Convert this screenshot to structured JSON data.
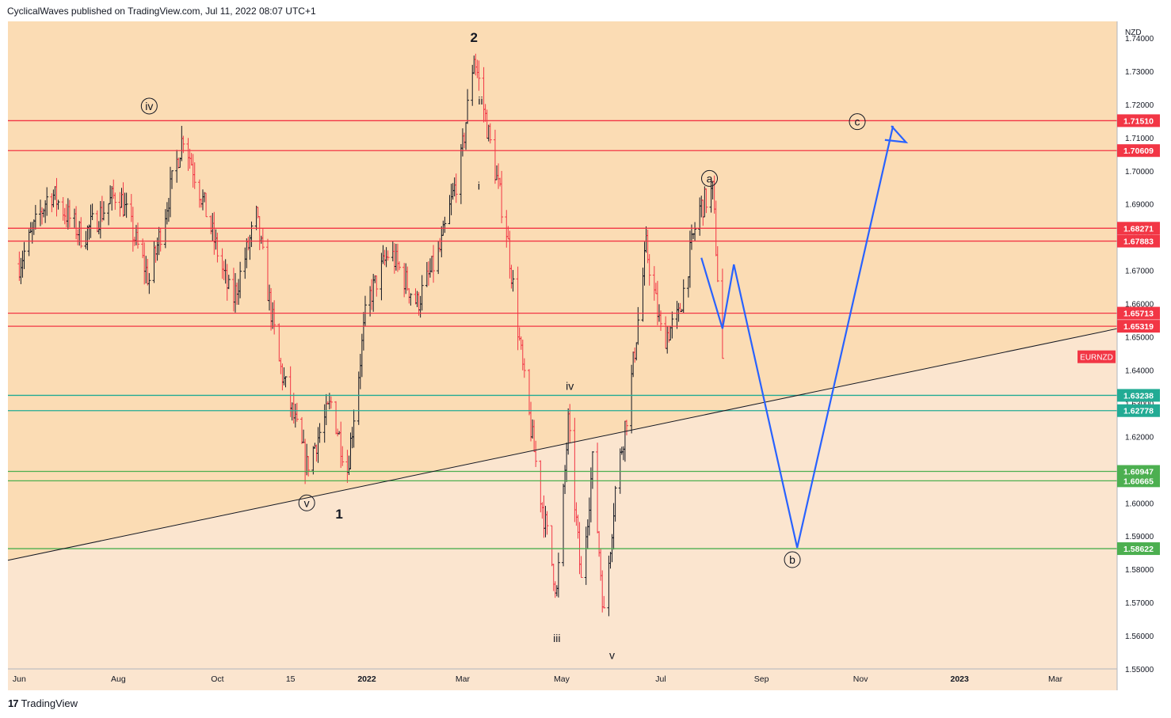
{
  "header": {
    "published": "CyclicalWaves published on TradingView.com, Jul 11, 2022 08:07 UTC+1"
  },
  "footer": {
    "logo_glyph": "17",
    "brand": "TradingView"
  },
  "colors": {
    "upper_bg": "#fbdcb4",
    "lower_bg": "#fbe5cf",
    "resistance": "#f23645",
    "support": "#22ab94",
    "support_light": "#4caf50",
    "projection": "#2962ff",
    "candle_up": "#131722",
    "candle_down": "#f23645"
  },
  "chart_data": {
    "type": "ohlc-bar",
    "symbol": "EURNZD",
    "currency": "NZD",
    "y_range": [
      1.55,
      1.745
    ],
    "x_ticks": [
      "Jun",
      "Aug",
      "Oct",
      "15",
      "2022",
      "Mar",
      "May",
      "Jul",
      "Sep",
      "Nov",
      "2023",
      "Mar"
    ],
    "y_ticks": [
      "1.74000",
      "1.73000",
      "1.72000",
      "1.71000",
      "1.70000",
      "1.69000",
      "1.68000",
      "1.67000",
      "1.66000",
      "1.65000",
      "1.64000",
      "1.63000",
      "1.62000",
      "1.61000",
      "1.60000",
      "1.59000",
      "1.58000",
      "1.57000",
      "1.56000",
      "1.55000"
    ],
    "resistance_levels": [
      "1.71510",
      "1.70609",
      "1.68271",
      "1.67883",
      "1.65713",
      "1.65319"
    ],
    "support_levels": [
      "1.63238",
      "1.62778",
      "1.60947",
      "1.60665",
      "1.58622"
    ],
    "last_price_label": "EURNZD",
    "price_path": [
      [
        "2021-06-01",
        1.672
      ],
      [
        "2021-06-20",
        1.694
      ],
      [
        "2021-07-10",
        1.68
      ],
      [
        "2021-08-01",
        1.694
      ],
      [
        "2021-08-20",
        1.667
      ],
      [
        "2021-09-10",
        1.711
      ],
      [
        "2021-09-25",
        1.686
      ],
      [
        "2021-10-10",
        1.66
      ],
      [
        "2021-10-25",
        1.686
      ],
      [
        "2021-11-08",
        1.642
      ],
      [
        "2021-11-25",
        1.611
      ],
      [
        "2021-12-10",
        1.63
      ],
      [
        "2021-12-20",
        1.61
      ],
      [
        "2022-01-01",
        1.66
      ],
      [
        "2022-01-15",
        1.676
      ],
      [
        "2022-02-01",
        1.66
      ],
      [
        "2022-02-15",
        1.676
      ],
      [
        "2022-02-28",
        1.703
      ],
      [
        "2022-03-08",
        1.735
      ],
      [
        "2022-03-18",
        1.708
      ],
      [
        "2022-03-28",
        1.682
      ],
      [
        "2022-04-08",
        1.636
      ],
      [
        "2022-04-18",
        1.602
      ],
      [
        "2022-04-28",
        1.573
      ],
      [
        "2022-05-05",
        1.624
      ],
      [
        "2022-05-13",
        1.576
      ],
      [
        "2022-05-20",
        1.612
      ],
      [
        "2022-05-27",
        1.566
      ],
      [
        "2022-06-03",
        1.604
      ],
      [
        "2022-06-12",
        1.633
      ],
      [
        "2022-06-22",
        1.677
      ],
      [
        "2022-07-02",
        1.649
      ],
      [
        "2022-07-12",
        1.656
      ],
      [
        "2022-07-24",
        1.688
      ],
      [
        "2022-08-02",
        1.694
      ],
      [
        "2022-08-08",
        1.643
      ]
    ],
    "trendline": {
      "from": [
        "2021-05-13",
        1.5815
      ],
      "to": [
        "2022-12-05",
        1.6398
      ]
    },
    "projection_path": [
      [
        "2022-07-26",
        1.6738
      ],
      [
        "2022-08-08",
        1.6525
      ],
      [
        "2022-08-15",
        1.6718
      ],
      [
        "2022-09-23",
        1.5865
      ],
      [
        "2022-11-21",
        1.7135
      ]
    ],
    "projection_arrowhead": [
      [
        "2022-11-20",
        1.7135
      ],
      [
        "2022-11-29",
        1.7086
      ],
      [
        "2022-11-16",
        1.7093
      ]
    ],
    "wave_labels": [
      {
        "text": "2",
        "style": "bold",
        "at": [
          "2022-03-08",
          1.74
        ]
      },
      {
        "text": "ii",
        "style": "plain",
        "at": [
          "2022-03-12",
          1.7212
        ]
      },
      {
        "text": "i",
        "style": "plain",
        "at": [
          "2022-03-11",
          1.6955
        ]
      },
      {
        "text": "iv",
        "style": "circle",
        "at": [
          "2021-08-20",
          1.7195
        ]
      },
      {
        "text": "v",
        "style": "circle",
        "at": [
          "2021-11-25",
          1.6
        ]
      },
      {
        "text": "1",
        "style": "bold",
        "at": [
          "2021-12-15",
          1.5965
        ]
      },
      {
        "text": "iv",
        "style": "plain",
        "at": [
          "2022-05-06",
          1.6352
        ]
      },
      {
        "text": "iii",
        "style": "plain",
        "at": [
          "2022-04-28",
          1.5593
        ]
      },
      {
        "text": "v",
        "style": "plain",
        "at": [
          "2022-06-01",
          1.5542
        ]
      },
      {
        "text": "a",
        "style": "circle",
        "at": [
          "2022-07-31",
          1.6977
        ]
      },
      {
        "text": "c",
        "style": "circle",
        "at": [
          "2022-10-30",
          1.7148
        ]
      },
      {
        "text": "b",
        "style": "circle",
        "at": [
          "2022-09-20",
          1.5829
        ]
      }
    ],
    "grid": false
  }
}
